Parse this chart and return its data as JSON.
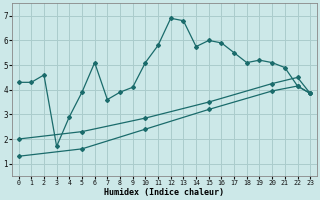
{
  "xlabel": "Humidex (Indice chaleur)",
  "bg_color": "#cce8e8",
  "line_color": "#1a6b6b",
  "grid_color": "#aacccc",
  "line1_x": [
    0,
    1,
    2,
    3,
    4,
    5,
    6,
    7,
    8,
    9,
    10,
    11,
    12,
    13,
    14,
    15,
    16,
    17,
    18,
    19,
    20,
    21,
    22,
    23
  ],
  "line1_y": [
    4.3,
    4.3,
    4.6,
    1.7,
    2.9,
    3.9,
    5.1,
    3.6,
    3.9,
    4.1,
    5.1,
    5.8,
    6.9,
    6.8,
    5.75,
    6.0,
    5.9,
    5.5,
    5.1,
    5.2,
    5.1,
    4.9,
    4.15,
    3.85
  ],
  "line2_x": [
    0,
    5,
    10,
    15,
    20,
    22,
    23
  ],
  "line2_y": [
    2.0,
    2.3,
    2.85,
    3.5,
    4.25,
    4.5,
    3.85
  ],
  "line3_x": [
    0,
    5,
    10,
    15,
    20,
    22,
    23
  ],
  "line3_y": [
    1.3,
    1.6,
    2.4,
    3.2,
    3.95,
    4.15,
    3.85
  ],
  "xlim": [
    -0.5,
    23.5
  ],
  "ylim": [
    0.5,
    7.5
  ],
  "xticks": [
    0,
    1,
    2,
    3,
    4,
    5,
    6,
    7,
    8,
    9,
    10,
    11,
    12,
    13,
    14,
    15,
    16,
    17,
    18,
    19,
    20,
    21,
    22,
    23
  ],
  "yticks": [
    1,
    2,
    3,
    4,
    5,
    6,
    7
  ]
}
